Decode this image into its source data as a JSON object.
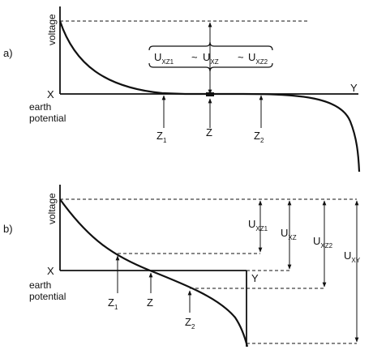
{
  "panel_a": {
    "tag": "a)",
    "y_label": "voltage",
    "left_label": "X",
    "right_label": "Y",
    "earth_label_1": "earth",
    "earth_label_2": "potential",
    "z1": {
      "main": "Z",
      "sub": "1"
    },
    "z": {
      "main": "Z"
    },
    "z2": {
      "main": "Z",
      "sub": "2"
    },
    "bracket_u1": {
      "main": "U",
      "sub": "XZ1"
    },
    "tilde_1": "~",
    "bracket_u": {
      "main": "U",
      "sub": "XZ"
    },
    "tilde_2": "~",
    "bracket_u2": {
      "main": "U",
      "sub": "XZ2"
    }
  },
  "panel_b": {
    "tag": "b)",
    "y_label": "voltage",
    "left_label": "X",
    "right_label": "Y",
    "earth_label_1": "earth",
    "earth_label_2": "potential",
    "z1": {
      "main": "Z",
      "sub": "1"
    },
    "z": {
      "main": "Z"
    },
    "z2": {
      "main": "Z",
      "sub": "2"
    },
    "u_xz1": {
      "main": "U",
      "sub": "XZ1"
    },
    "u_xz": {
      "main": "U",
      "sub": "XZ"
    },
    "u_xz2": {
      "main": "U",
      "sub": "XZ2"
    },
    "u_xy": {
      "main": "U",
      "sub": "XY"
    }
  }
}
